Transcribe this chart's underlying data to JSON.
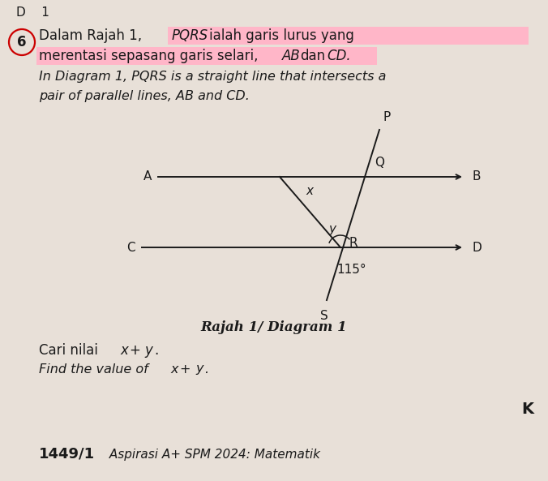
{
  "bg_color": "#e8e0d8",
  "text_color": "#1a1a1a",
  "highlight_color": "#ffb6c8",
  "circle_color": "#cc0000",
  "question_number": "6",
  "diagram_caption": "Rajah 1/ Diagram 1",
  "angle_label": "115°",
  "line_color": "#1a1a1a",
  "line_width": 1.4,
  "footer": "1449/1",
  "footer2": " Aspirasi A+ SPM 2024: Matematik"
}
